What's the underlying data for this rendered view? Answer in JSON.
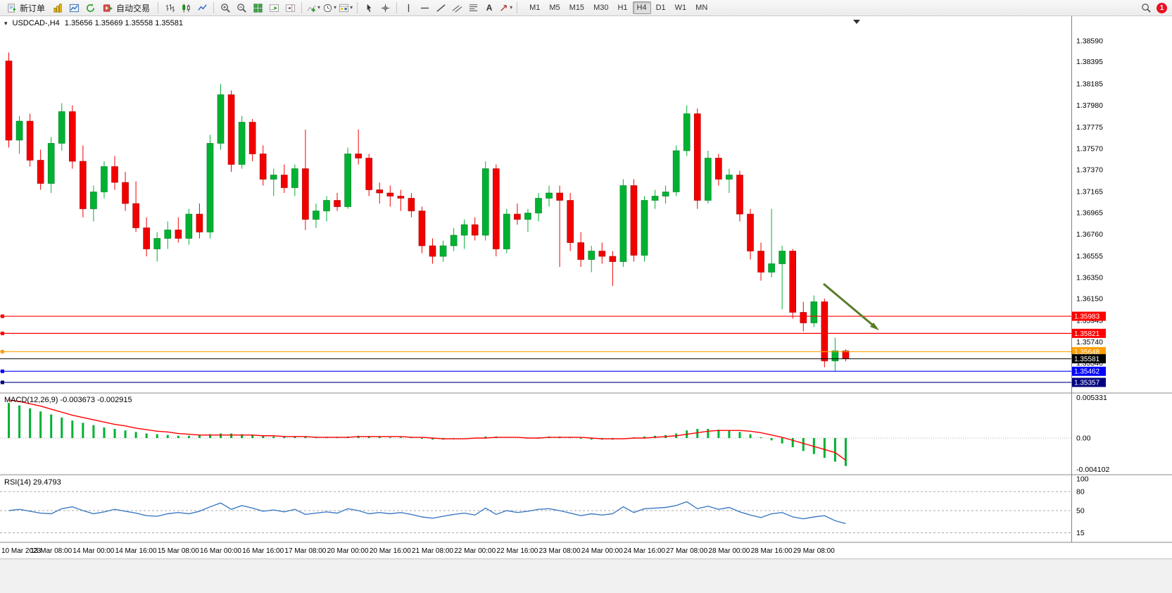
{
  "toolbar": {
    "new_order": "新订单",
    "auto_trading": "自动交易",
    "text_tool_label": "A",
    "timeframes": [
      "M1",
      "M5",
      "M15",
      "M30",
      "H1",
      "H4",
      "D1",
      "W1",
      "MN"
    ],
    "active_timeframe": "H4",
    "notification_count": "1",
    "icon_names": [
      "new-order-icon",
      "gold-bars-icon",
      "market-chart-icon",
      "refresh-icon",
      "auto-trading-icon",
      "bar-chart-icon",
      "candlestick-icon",
      "line-chart-icon",
      "zoom-in-icon",
      "zoom-out-icon",
      "tile-windows-icon",
      "auto-scroll-icon",
      "chart-shift-icon",
      "indicators-icon",
      "periods-icon",
      "templates-icon",
      "cursor-icon",
      "crosshair-icon",
      "vertical-line-icon",
      "horizontal-line-icon",
      "trendline-icon",
      "channel-icon",
      "fibonacci-icon",
      "text-tool-icon",
      "arrows-tool-icon",
      "search-icon",
      "notification-badge"
    ]
  },
  "chart": {
    "symbol_period": "USDCAD-,H4",
    "ohlc": "1.35656 1.35669 1.35558 1.35581",
    "dropdown_glyph": "▾",
    "macd_title": "MACD(12,26,9) -0.003673 -0.002915",
    "rsi_title": "RSI(14) 29.4793"
  },
  "chart_data": {
    "type": "candlestick",
    "symbol": "USDCAD",
    "period": "H4",
    "colors": {
      "bull": "#00b232",
      "bull_border": "#007a20",
      "bear": "#f20000",
      "bear_border": "#a80000",
      "macd_hist": "#00b232",
      "macd_signal": "#ff0000",
      "rsi_line": "#3e7bc4",
      "arrow": "#587c28",
      "axis_text": "#000000",
      "grid": "#b0b0b0"
    },
    "price_axis_labels": [
      "1.38590",
      "1.38395",
      "1.38185",
      "1.37980",
      "1.37775",
      "1.37570",
      "1.37370",
      "1.37165",
      "1.36965",
      "1.36760",
      "1.36555",
      "1.36350",
      "1.36150",
      "1.35945",
      "1.35740",
      "1.35540"
    ],
    "hlines": [
      {
        "price": 1.35983,
        "color": "#ff0000",
        "label": "1.35983"
      },
      {
        "price": 1.35821,
        "color": "#ff0000",
        "label": "1.35821"
      },
      {
        "price": 1.35648,
        "color": "#ff9f00",
        "label": "1.35648"
      },
      {
        "price": 1.35462,
        "color": "#0000ff",
        "label": "1.35462"
      },
      {
        "price": 1.35357,
        "color": "#000080",
        "label": "1.35357"
      }
    ],
    "current_price": {
      "value": 1.35581,
      "label": "1.35581",
      "color": "#000000"
    },
    "candles": [
      [
        1.384,
        1.3848,
        1.3758,
        1.3765
      ],
      [
        1.3765,
        1.3788,
        1.3752,
        1.3783
      ],
      [
        1.3783,
        1.379,
        1.374,
        1.3746
      ],
      [
        1.3746,
        1.3756,
        1.3718,
        1.3724
      ],
      [
        1.3724,
        1.3768,
        1.3715,
        1.3762
      ],
      [
        1.3762,
        1.38,
        1.3755,
        1.3792
      ],
      [
        1.3792,
        1.3798,
        1.3738,
        1.3745
      ],
      [
        1.3745,
        1.376,
        1.3692,
        1.37
      ],
      [
        1.37,
        1.3722,
        1.3688,
        1.3716
      ],
      [
        1.3716,
        1.3745,
        1.371,
        1.374
      ],
      [
        1.374,
        1.375,
        1.3718,
        1.3725
      ],
      [
        1.3725,
        1.3735,
        1.3698,
        1.3705
      ],
      [
        1.3705,
        1.3726,
        1.3678,
        1.3682
      ],
      [
        1.3682,
        1.3692,
        1.3655,
        1.3662
      ],
      [
        1.3662,
        1.3678,
        1.365,
        1.3672
      ],
      [
        1.3672,
        1.3688,
        1.3662,
        1.368
      ],
      [
        1.368,
        1.3692,
        1.3668,
        1.3672
      ],
      [
        1.3672,
        1.37,
        1.3666,
        1.3695
      ],
      [
        1.3695,
        1.3705,
        1.3672,
        1.3678
      ],
      [
        1.3678,
        1.377,
        1.3672,
        1.3762
      ],
      [
        1.3762,
        1.3818,
        1.3756,
        1.3808
      ],
      [
        1.3808,
        1.3812,
        1.3735,
        1.3742
      ],
      [
        1.3742,
        1.3788,
        1.3738,
        1.3782
      ],
      [
        1.3782,
        1.3785,
        1.3745,
        1.3752
      ],
      [
        1.3752,
        1.376,
        1.3722,
        1.3728
      ],
      [
        1.3728,
        1.3738,
        1.3712,
        1.3732
      ],
      [
        1.3732,
        1.3742,
        1.3715,
        1.372
      ],
      [
        1.372,
        1.3742,
        1.3712,
        1.3738
      ],
      [
        1.3738,
        1.3775,
        1.368,
        1.369
      ],
      [
        1.369,
        1.3705,
        1.3682,
        1.3698
      ],
      [
        1.3698,
        1.3712,
        1.3688,
        1.3708
      ],
      [
        1.3708,
        1.3715,
        1.3698,
        1.3702
      ],
      [
        1.3702,
        1.3758,
        1.37,
        1.3752
      ],
      [
        1.3752,
        1.3775,
        1.3742,
        1.3748
      ],
      [
        1.3748,
        1.3752,
        1.3712,
        1.3718
      ],
      [
        1.3718,
        1.3725,
        1.3705,
        1.3715
      ],
      [
        1.3715,
        1.3722,
        1.3702,
        1.3712
      ],
      [
        1.3712,
        1.3718,
        1.3698,
        1.371
      ],
      [
        1.371,
        1.3715,
        1.3692,
        1.3698
      ],
      [
        1.3698,
        1.3702,
        1.3658,
        1.3665
      ],
      [
        1.3665,
        1.3672,
        1.3648,
        1.3655
      ],
      [
        1.3655,
        1.367,
        1.365,
        1.3665
      ],
      [
        1.3665,
        1.3682,
        1.366,
        1.3675
      ],
      [
        1.3675,
        1.369,
        1.3662,
        1.3685
      ],
      [
        1.3685,
        1.3692,
        1.367,
        1.3675
      ],
      [
        1.3675,
        1.3745,
        1.367,
        1.3738
      ],
      [
        1.3738,
        1.3742,
        1.3655,
        1.3662
      ],
      [
        1.3662,
        1.37,
        1.3658,
        1.3695
      ],
      [
        1.3695,
        1.3705,
        1.3685,
        1.369
      ],
      [
        1.369,
        1.37,
        1.3678,
        1.3696
      ],
      [
        1.3696,
        1.3715,
        1.3688,
        1.371
      ],
      [
        1.371,
        1.3722,
        1.3702,
        1.3715
      ],
      [
        1.3715,
        1.3722,
        1.3645,
        1.3708
      ],
      [
        1.3708,
        1.3715,
        1.366,
        1.3668
      ],
      [
        1.3668,
        1.3678,
        1.3645,
        1.3652
      ],
      [
        1.3652,
        1.3665,
        1.364,
        1.366
      ],
      [
        1.366,
        1.3668,
        1.3648,
        1.3655
      ],
      [
        1.3655,
        1.366,
        1.3627,
        1.365
      ],
      [
        1.365,
        1.3728,
        1.3645,
        1.3722
      ],
      [
        1.3722,
        1.3728,
        1.365,
        1.3656
      ],
      [
        1.3656,
        1.3712,
        1.365,
        1.3708
      ],
      [
        1.3708,
        1.3718,
        1.37,
        1.3712
      ],
      [
        1.3712,
        1.3722,
        1.3705,
        1.3716
      ],
      [
        1.3716,
        1.376,
        1.3712,
        1.3755
      ],
      [
        1.3755,
        1.3798,
        1.375,
        1.379
      ],
      [
        1.379,
        1.3795,
        1.37,
        1.3708
      ],
      [
        1.3708,
        1.3755,
        1.3705,
        1.3748
      ],
      [
        1.3748,
        1.3752,
        1.3722,
        1.3728
      ],
      [
        1.3728,
        1.3738,
        1.3715,
        1.3732
      ],
      [
        1.3732,
        1.3736,
        1.3688,
        1.3695
      ],
      [
        1.3695,
        1.37,
        1.3652,
        1.366
      ],
      [
        1.366,
        1.3668,
        1.3632,
        1.364
      ],
      [
        1.364,
        1.37,
        1.3635,
        1.3648
      ],
      [
        1.3648,
        1.3665,
        1.3605,
        1.366
      ],
      [
        1.366,
        1.3662,
        1.3596,
        1.3602
      ],
      [
        1.3602,
        1.3612,
        1.3584,
        1.3592
      ],
      [
        1.3592,
        1.3618,
        1.3588,
        1.3612
      ],
      [
        1.3612,
        1.3615,
        1.355,
        1.3556
      ],
      [
        1.3556,
        1.3578,
        1.3546,
        1.35656
      ],
      [
        1.35656,
        1.35669,
        1.35558,
        1.35581
      ]
    ],
    "macd": {
      "axis_labels": [
        "0.005331",
        "0.00",
        "-0.004102"
      ],
      "histogram": [
        0.0046,
        0.0043,
        0.0039,
        0.0035,
        0.0031,
        0.0027,
        0.0023,
        0.002,
        0.0017,
        0.0014,
        0.0012,
        0.001,
        0.0008,
        0.0006,
        0.0005,
        0.0004,
        0.0003,
        0.0003,
        0.0004,
        0.0005,
        0.0006,
        0.0006,
        0.0005,
        0.0004,
        0.0003,
        0.0002,
        0.0002,
        0.0002,
        0.0002,
        0.0001,
        0.0001,
        0.0001,
        0.0002,
        0.0003,
        0.0002,
        0.0002,
        0.0001,
        0.0001,
        0.0001,
        -0.0001,
        -0.0002,
        -0.0002,
        -0.0001,
        0.0,
        0.0,
        0.0002,
        0.0002,
        0.0,
        0.0,
        0.0,
        0.0001,
        0.0002,
        0.0002,
        0.0001,
        -0.0001,
        -0.0002,
        -0.0002,
        -0.0002,
        0.0,
        0.0001,
        0.0002,
        0.0003,
        0.0004,
        0.0006,
        0.001,
        0.0012,
        0.0012,
        0.0011,
        0.001,
        0.0008,
        0.0005,
        0.0001,
        -0.0003,
        -0.0007,
        -0.0012,
        -0.0017,
        -0.0021,
        -0.0026,
        -0.0031,
        -0.003673
      ],
      "signal": [
        0.005,
        0.0048,
        0.0045,
        0.0042,
        0.0038,
        0.0034,
        0.003,
        0.0027,
        0.0024,
        0.0021,
        0.0018,
        0.0016,
        0.0013,
        0.0011,
        0.0009,
        0.0008,
        0.0006,
        0.0005,
        0.0004,
        0.0004,
        0.0004,
        0.0004,
        0.0004,
        0.0004,
        0.0003,
        0.0003,
        0.0002,
        0.0002,
        0.0002,
        0.0001,
        0.0001,
        0.0001,
        0.0001,
        0.0002,
        0.0002,
        0.0002,
        0.0002,
        0.0002,
        0.0001,
        0.0001,
        0.0,
        -0.0001,
        -0.0001,
        -0.0001,
        0.0,
        0.0,
        0.0001,
        0.0001,
        0.0001,
        0.0,
        0.0,
        0.0001,
        0.0001,
        0.0001,
        0.0001,
        0.0,
        -0.0001,
        -0.0001,
        -0.0001,
        0.0,
        0.0,
        0.0001,
        0.0002,
        0.0003,
        0.0005,
        0.0007,
        0.0009,
        0.001,
        0.001,
        0.001,
        0.0009,
        0.0007,
        0.0004,
        0.0001,
        -0.0003,
        -0.0007,
        -0.0011,
        -0.0015,
        -0.0019,
        -0.002915
      ]
    },
    "rsi": {
      "axis_labels": [
        "100",
        "80",
        "50",
        "15"
      ],
      "levels": [
        80,
        50,
        15
      ],
      "series": [
        50,
        52,
        49,
        46,
        45,
        53,
        56,
        50,
        45,
        48,
        52,
        49,
        46,
        42,
        41,
        45,
        47,
        45,
        49,
        56,
        62,
        52,
        58,
        54,
        49,
        51,
        48,
        52,
        44,
        46,
        48,
        46,
        53,
        50,
        45,
        47,
        45,
        47,
        44,
        40,
        38,
        41,
        44,
        46,
        43,
        54,
        44,
        50,
        47,
        49,
        52,
        53,
        50,
        46,
        42,
        45,
        43,
        45,
        56,
        47,
        53,
        54,
        55,
        58,
        64,
        53,
        57,
        52,
        55,
        48,
        43,
        39,
        45,
        47,
        40,
        37,
        40,
        42,
        34,
        29.4793
      ]
    },
    "time_labels": [
      "10 Mar 2023",
      "13 Mar 08:00",
      "14 Mar 00:00",
      "14 Mar 16:00",
      "15 Mar 08:00",
      "16 Mar 00:00",
      "16 Mar 16:00",
      "17 Mar 08:00",
      "20 Mar 00:00",
      "20 Mar 16:00",
      "21 Mar 08:00",
      "22 Mar 00:00",
      "22 Mar 16:00",
      "23 Mar 08:00",
      "24 Mar 00:00",
      "24 Mar 16:00",
      "27 Mar 08:00",
      "28 Mar 00:00",
      "28 Mar 16:00",
      "29 Mar 08:00"
    ],
    "annotation_arrow": {
      "color": "#587c28",
      "from": [
        1170,
        380
      ],
      "to": [
        1244,
        442
      ]
    }
  }
}
